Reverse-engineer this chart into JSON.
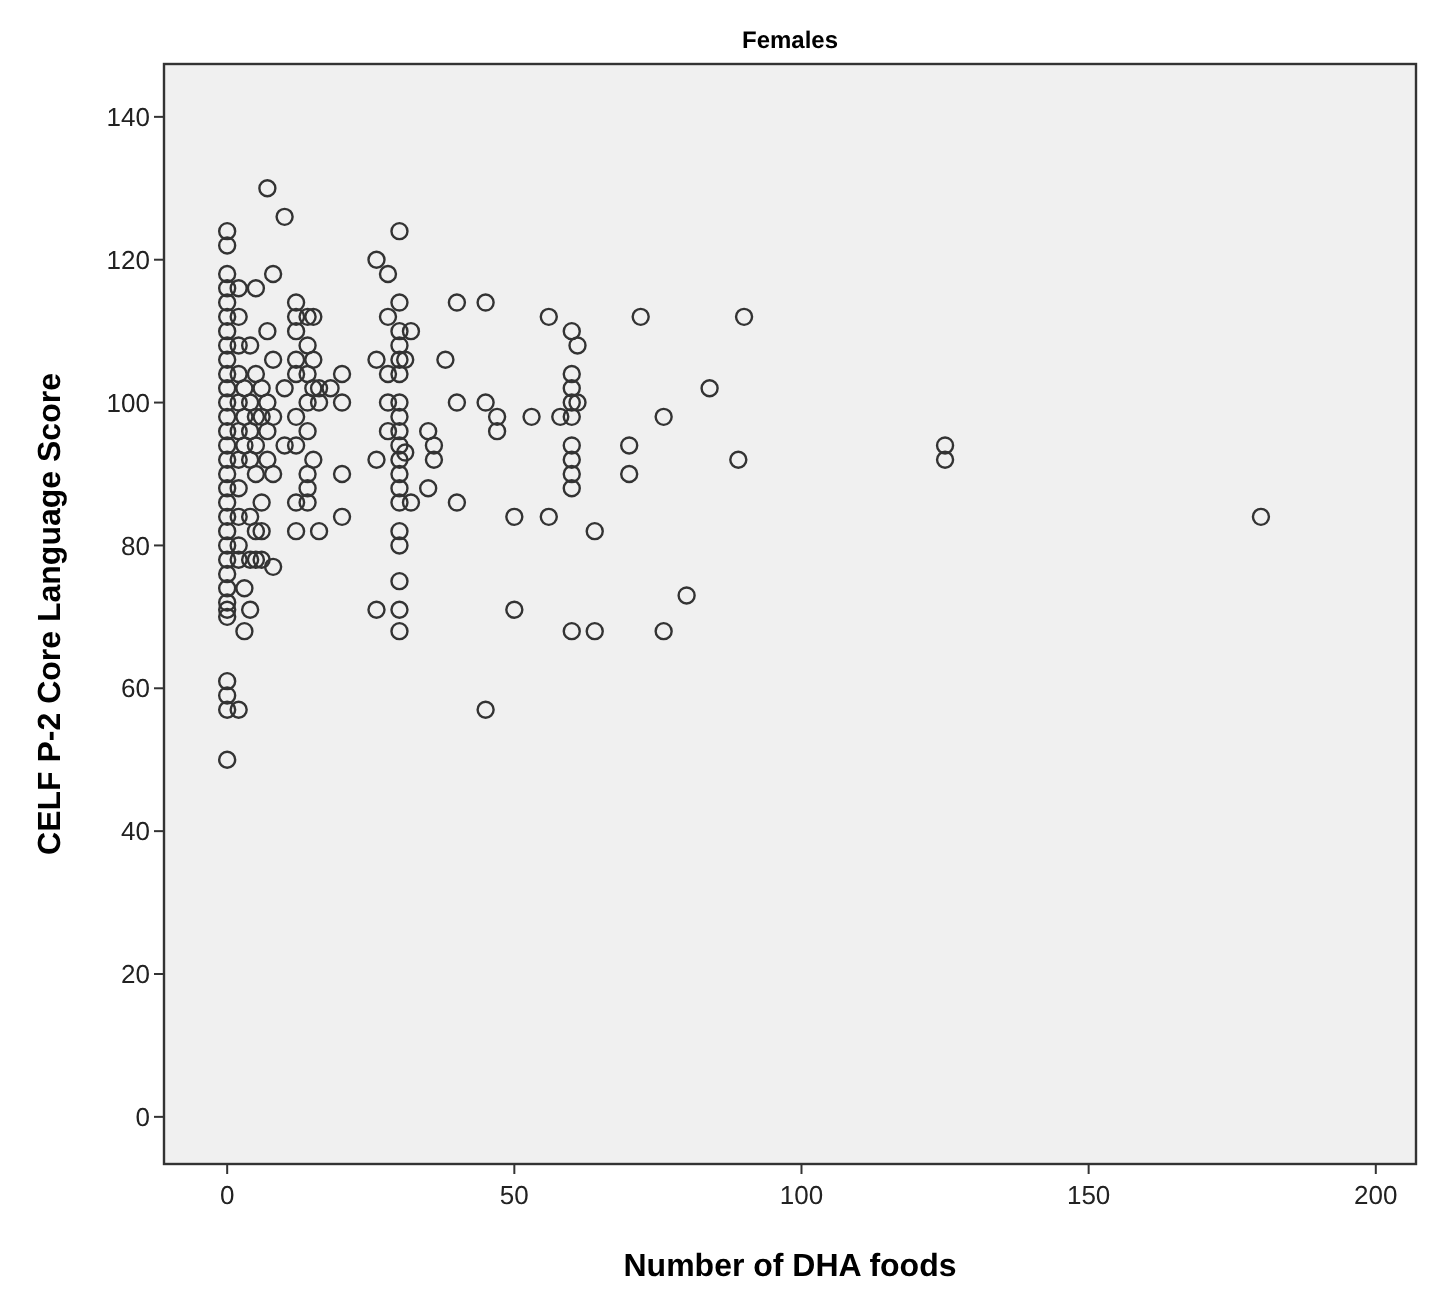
{
  "chart_data": {
    "type": "scatter",
    "title": "Females",
    "xlabel": "Number of DHA foods",
    "ylabel": "CELF P-2 Core Language Score",
    "xlim": [
      -11,
      207
    ],
    "ylim": [
      -6.6,
      147.4
    ],
    "xticks": [
      0,
      50,
      100,
      150,
      200
    ],
    "yticks": [
      0,
      20,
      40,
      60,
      80,
      100,
      120,
      140
    ],
    "grid": false,
    "marker": "circle",
    "series": [
      {
        "color": "#333333",
        "x": [
          0,
          0,
          0,
          0,
          0,
          0,
          0,
          0,
          0,
          0,
          0,
          0,
          0,
          0,
          0,
          0,
          0,
          0,
          0,
          0,
          0,
          0,
          0,
          0,
          0,
          0,
          0,
          0,
          0,
          0,
          0,
          0,
          2,
          2,
          2,
          2,
          2,
          2,
          2,
          2,
          2,
          2,
          2,
          2,
          3,
          3,
          3,
          3,
          3,
          4,
          4,
          4,
          4,
          4,
          4,
          4,
          5,
          5,
          5,
          5,
          5,
          5,
          5,
          6,
          6,
          6,
          6,
          6,
          7,
          7,
          7,
          7,
          7,
          8,
          8,
          8,
          8,
          8,
          10,
          10,
          10,
          12,
          12,
          12,
          12,
          12,
          12,
          12,
          12,
          12,
          14,
          14,
          14,
          14,
          14,
          14,
          14,
          14,
          15,
          15,
          15,
          15,
          16,
          16,
          16,
          18,
          20,
          20,
          20,
          20,
          26,
          26,
          26,
          26,
          28,
          28,
          28,
          28,
          28,
          30,
          30,
          30,
          30,
          30,
          30,
          30,
          30,
          30,
          30,
          30,
          30,
          30,
          30,
          30,
          30,
          30,
          30,
          30,
          31,
          31,
          32,
          32,
          35,
          35,
          36,
          36,
          38,
          40,
          40,
          40,
          45,
          45,
          45,
          47,
          47,
          50,
          50,
          53,
          56,
          56,
          58,
          60,
          60,
          60,
          60,
          60,
          60,
          60,
          60,
          60,
          60,
          61,
          61,
          64,
          64,
          70,
          70,
          72,
          76,
          76,
          80,
          84,
          89,
          90,
          125,
          125,
          180
        ],
        "values": [
          124,
          122,
          118,
          116,
          114,
          112,
          110,
          108,
          106,
          104,
          102,
          100,
          98,
          96,
          94,
          92,
          90,
          88,
          86,
          84,
          82,
          80,
          78,
          76,
          74,
          72,
          71,
          70,
          61,
          59,
          57,
          50,
          116,
          112,
          108,
          104,
          100,
          96,
          92,
          88,
          84,
          80,
          78,
          57,
          102,
          98,
          94,
          68,
          74,
          108,
          100,
          96,
          92,
          84,
          78,
          71,
          116,
          104,
          98,
          94,
          90,
          82,
          78,
          98,
          102,
          86,
          82,
          78,
          130,
          110,
          100,
          96,
          92,
          118,
          106,
          98,
          90,
          77,
          126,
          102,
          94,
          114,
          112,
          110,
          106,
          104,
          98,
          94,
          86,
          82,
          112,
          108,
          104,
          100,
          96,
          90,
          88,
          86,
          112,
          106,
          102,
          92,
          102,
          100,
          82,
          102,
          104,
          100,
          90,
          84,
          120,
          106,
          92,
          71,
          118,
          112,
          104,
          100,
          96,
          124,
          114,
          110,
          108,
          106,
          104,
          100,
          98,
          96,
          94,
          92,
          90,
          88,
          86,
          82,
          80,
          75,
          71,
          68,
          106,
          93,
          110,
          86,
          96,
          88,
          94,
          92,
          106,
          114,
          100,
          86,
          114,
          100,
          57,
          98,
          96,
          84,
          71,
          98,
          112,
          84,
          98,
          110,
          104,
          102,
          100,
          98,
          94,
          92,
          90,
          88,
          68,
          108,
          100,
          82,
          68,
          94,
          90,
          112,
          98,
          68,
          73,
          102,
          92,
          112,
          94,
          92,
          84
        ]
      }
    ]
  }
}
